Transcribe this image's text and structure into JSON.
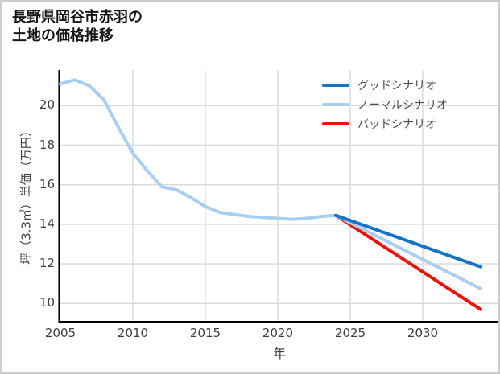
{
  "title": {
    "line1": "長野県岡谷市赤羽の",
    "line2": "土地の価格推移"
  },
  "axes": {
    "x": {
      "label": "年",
      "ticks": [
        "2005",
        "2010",
        "2015",
        "2020",
        "2025",
        "2030"
      ],
      "range": [
        2005,
        2035.2
      ]
    },
    "y": {
      "label": "坪（3.3㎡）単価（万円）",
      "ticks": [
        "10",
        "12",
        "14",
        "16",
        "18",
        "20"
      ],
      "range": [
        9.1,
        21.8
      ]
    }
  },
  "legend": {
    "items": [
      {
        "label": "グッドシナリオ",
        "color": "#1573c7"
      },
      {
        "label": "ノーマルシナリオ",
        "color": "#a8cff2"
      },
      {
        "label": "バッドシナリオ",
        "color": "#eb140c"
      }
    ]
  },
  "style": {
    "grid_color": "#d9d9d9",
    "axis_color": "#000000",
    "background": "#ffffff",
    "border_color": "#cccccc"
  },
  "chart_data": {
    "type": "line",
    "title": "長野県岡谷市赤羽の土地の価格推移",
    "xlabel": "年",
    "ylabel": "坪（3.3㎡）単価（万円）",
    "xlim": [
      2005,
      2035.2
    ],
    "ylim": [
      9.1,
      21.8
    ],
    "grid": true,
    "legend_position": "top-right",
    "series": [
      {
        "id": "good",
        "name": "グッドシナリオ",
        "color": "#1573c7",
        "x": [
          2024,
          2034
        ],
        "y": [
          14.45,
          11.85
        ]
      },
      {
        "id": "normal",
        "name": "ノーマルシナリオ",
        "color": "#a8cff2",
        "x": [
          2005,
          2006,
          2007,
          2008,
          2009,
          2010,
          2011,
          2012,
          2013,
          2014,
          2015,
          2016,
          2017,
          2018,
          2019,
          2020,
          2021,
          2022,
          2023,
          2024,
          2034
        ],
        "y": [
          21.1,
          21.3,
          21.0,
          20.3,
          18.9,
          17.6,
          16.7,
          15.9,
          15.75,
          15.35,
          14.9,
          14.6,
          14.5,
          14.4,
          14.35,
          14.3,
          14.25,
          14.3,
          14.4,
          14.45,
          10.75
        ]
      },
      {
        "id": "bad",
        "name": "バッドシナリオ",
        "color": "#eb140c",
        "x": [
          2024,
          2034
        ],
        "y": [
          14.45,
          9.7
        ]
      }
    ]
  }
}
